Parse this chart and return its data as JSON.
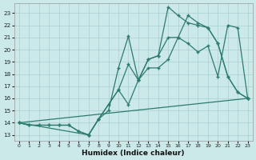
{
  "xlabel": "Humidex (Indice chaleur)",
  "xlim": [
    -0.5,
    23.5
  ],
  "ylim": [
    12.5,
    23.8
  ],
  "yticks": [
    13,
    14,
    15,
    16,
    17,
    18,
    19,
    20,
    21,
    22,
    23
  ],
  "xticks": [
    0,
    1,
    2,
    3,
    4,
    5,
    6,
    7,
    8,
    9,
    10,
    11,
    12,
    13,
    14,
    15,
    16,
    17,
    18,
    19,
    20,
    21,
    22,
    23
  ],
  "bg_color": "#cce9e9",
  "grid_color": "#aacfcf",
  "line_color": "#2d7a6e",
  "line1_x": [
    0,
    1,
    2,
    3,
    4,
    5,
    6,
    7,
    8,
    9,
    10,
    11,
    12,
    13,
    14,
    15,
    16,
    17,
    18,
    19,
    20,
    21,
    22,
    23
  ],
  "line1_y": [
    14.0,
    13.8,
    13.8,
    13.8,
    13.8,
    13.8,
    13.3,
    13.0,
    14.3,
    15.5,
    16.7,
    15.5,
    17.5,
    18.5,
    18.5,
    19.2,
    21.0,
    20.5,
    19.8,
    20.3,
    17.8,
    22.0,
    21.8,
    16.0
  ],
  "line2_x": [
    0,
    1,
    2,
    3,
    4,
    5,
    6,
    7,
    8,
    9,
    10,
    11,
    12,
    13,
    14,
    15,
    16,
    17,
    18,
    19,
    20,
    21,
    22,
    23
  ],
  "line2_y": [
    14.0,
    13.8,
    13.8,
    13.8,
    13.8,
    13.8,
    13.3,
    13.0,
    14.3,
    15.0,
    18.5,
    21.1,
    17.5,
    19.2,
    19.5,
    23.5,
    22.8,
    22.2,
    22.0,
    21.8,
    20.5,
    17.8,
    16.5,
    16.0
  ],
  "line3_x": [
    0,
    7,
    8,
    10,
    11,
    12,
    13,
    14,
    15,
    16,
    17,
    18,
    19,
    20,
    21,
    22,
    23
  ],
  "line3_y": [
    14.0,
    13.0,
    14.3,
    16.7,
    18.8,
    17.5,
    19.2,
    19.5,
    21.0,
    21.0,
    22.8,
    22.2,
    21.8,
    20.5,
    17.8,
    16.5,
    16.0
  ],
  "line4_x": [
    0,
    23
  ],
  "line4_y": [
    14.0,
    16.0
  ]
}
